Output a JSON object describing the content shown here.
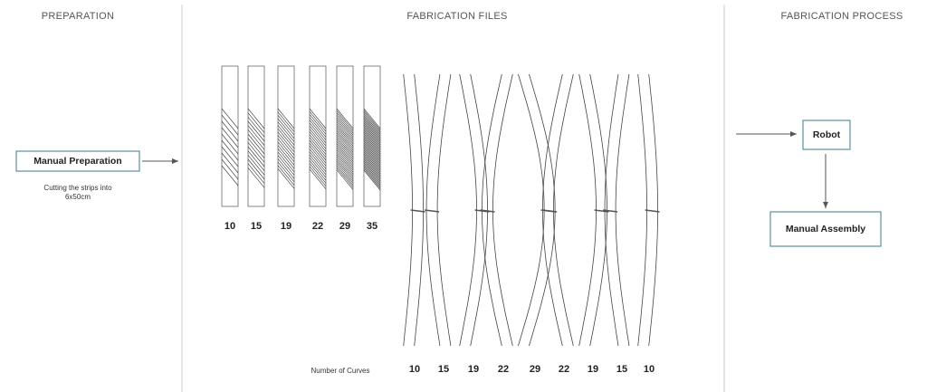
{
  "sections": [
    "PREPARATION",
    "FABRICATION FILES",
    "FABRICATION PROCESS"
  ],
  "preparation": {
    "box": "Manual Preparation",
    "caption": [
      "Cutting the strips into",
      "6x50cm"
    ]
  },
  "strips": {
    "values": [
      10,
      15,
      19,
      22,
      29,
      35
    ]
  },
  "curves": {
    "axis_label": "Number of Curves",
    "values": [
      10,
      15,
      19,
      22,
      29,
      22,
      19,
      15,
      10
    ]
  },
  "process": {
    "robot": "Robot",
    "assembly": "Manual Assembly"
  }
}
